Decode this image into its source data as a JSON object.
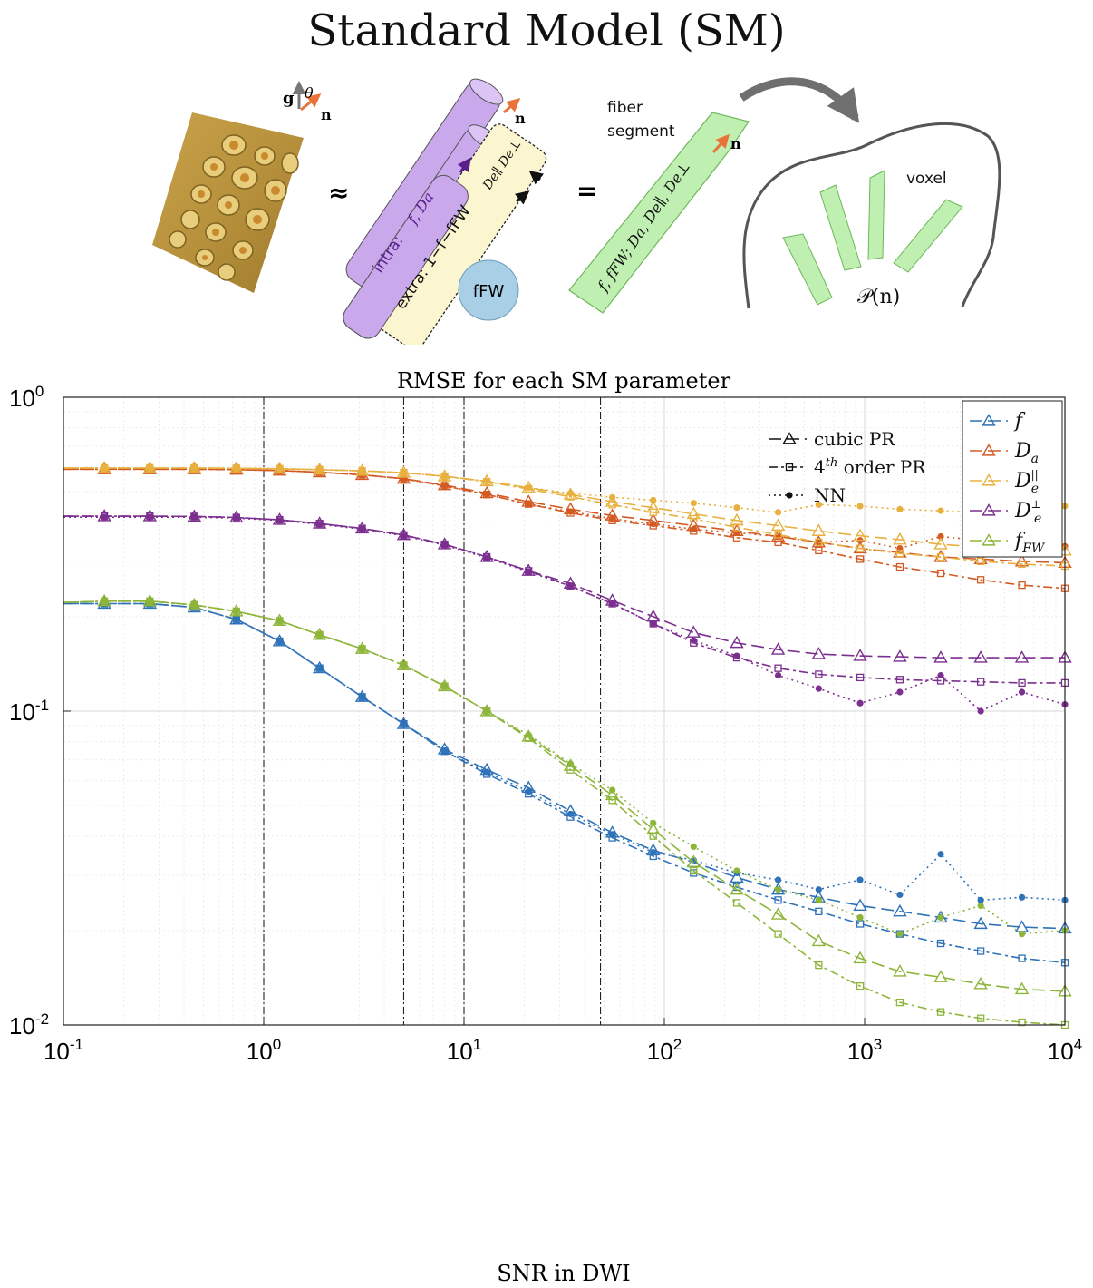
{
  "title": "Standard Model (SM)",
  "diagram": {
    "vector_g": "g",
    "vector_theta": "θ",
    "vector_n": "n",
    "approx_symbol": "≈",
    "equals_symbol": "=",
    "intra_label": "intra:",
    "intra_params": "f,    Da",
    "extra_label": "extra: 1−f−fFW",
    "extra_params": "De∥  De⊥",
    "fw_label": "fFW",
    "fiber_label_line1": "fiber",
    "fiber_label_line2": "segment",
    "fiber_params": "f, fFW; Da, De∥, De⊥",
    "voxel_label": "voxel",
    "odf_label": "𝒫(n)",
    "colors": {
      "cylinder": "#c9a8ec",
      "extra_box": "#fbf6cf",
      "fw_ball": "#a8cfe6",
      "fiber": "#bff0b2",
      "arrow": "#e8743a"
    }
  },
  "chart_data": {
    "type": "line",
    "title": "RMSE for each SM parameter",
    "xlabel": "SNR in DWI",
    "ylabel": "",
    "xscale": "log",
    "yscale": "log",
    "xlim": [
      0.1,
      10000
    ],
    "ylim": [
      0.01,
      1
    ],
    "xticks": [
      {
        "value": 0.1,
        "base": "10",
        "exp": "-1"
      },
      {
        "value": 1,
        "base": "10",
        "exp": "0"
      },
      {
        "value": 10,
        "base": "10",
        "exp": "1"
      },
      {
        "value": 100,
        "base": "10",
        "exp": "2"
      },
      {
        "value": 1000,
        "base": "10",
        "exp": "3"
      },
      {
        "value": 10000,
        "base": "10",
        "exp": "4"
      }
    ],
    "yticks": [
      {
        "value": 0.01,
        "base": "10",
        "exp": "-2"
      },
      {
        "value": 0.1,
        "base": "10",
        "exp": "-1"
      },
      {
        "value": 1,
        "base": "10",
        "exp": "0"
      }
    ],
    "vlines": [
      1,
      5,
      10,
      48
    ],
    "x": [
      0.1,
      0.16,
      0.27,
      0.45,
      0.73,
      1.2,
      1.9,
      3.1,
      5,
      8,
      13,
      21,
      34,
      55,
      88,
      140,
      230,
      370,
      590,
      950,
      1500,
      2400,
      3800,
      6100,
      10000
    ],
    "methods_legend": [
      {
        "label": "cubic PR",
        "style": "cubic",
        "marker": "triangle"
      },
      {
        "label": "4th order PR",
        "label_pre": "4",
        "label_sup": "th",
        "label_post": " order PR",
        "style": "fourth",
        "marker": "square"
      },
      {
        "label": "NN",
        "style": "nn",
        "marker": "dot"
      }
    ],
    "series": [
      {
        "name": "f",
        "symbol": "f",
        "color": "#2f72b8",
        "cubic": [
          0.22,
          0.22,
          0.22,
          0.214,
          0.196,
          0.167,
          0.137,
          0.111,
          0.091,
          0.0755,
          0.065,
          0.057,
          0.048,
          0.041,
          0.036,
          0.033,
          0.0295,
          0.027,
          0.0255,
          0.024,
          0.023,
          0.022,
          0.021,
          0.0205,
          0.0203
        ],
        "fourth": [
          0.22,
          0.22,
          0.22,
          0.214,
          0.196,
          0.167,
          0.137,
          0.111,
          0.091,
          0.0745,
          0.063,
          0.0545,
          0.046,
          0.0395,
          0.0345,
          0.0305,
          0.0275,
          0.025,
          0.023,
          0.021,
          0.0195,
          0.0182,
          0.0172,
          0.0163,
          0.0158
        ],
        "nn": [
          0.22,
          0.22,
          0.22,
          0.214,
          0.196,
          0.167,
          0.137,
          0.111,
          0.091,
          0.0745,
          0.064,
          0.0555,
          0.047,
          0.0405,
          0.0355,
          0.0335,
          0.0305,
          0.029,
          0.027,
          0.029,
          0.026,
          0.035,
          0.025,
          0.0255,
          0.025
        ]
      },
      {
        "name": "Da",
        "symbol": "D",
        "sub": "a",
        "color": "#d35a23",
        "cubic": [
          0.59,
          0.59,
          0.59,
          0.59,
          0.588,
          0.584,
          0.577,
          0.566,
          0.55,
          0.525,
          0.495,
          0.465,
          0.44,
          0.42,
          0.405,
          0.39,
          0.375,
          0.36,
          0.345,
          0.33,
          0.32,
          0.31,
          0.305,
          0.3,
          0.297
        ],
        "fourth": [
          0.59,
          0.59,
          0.59,
          0.59,
          0.588,
          0.584,
          0.577,
          0.566,
          0.55,
          0.522,
          0.49,
          0.457,
          0.428,
          0.405,
          0.39,
          0.375,
          0.357,
          0.345,
          0.325,
          0.305,
          0.288,
          0.275,
          0.262,
          0.252,
          0.246
        ],
        "nn": [
          0.59,
          0.59,
          0.59,
          0.59,
          0.588,
          0.584,
          0.577,
          0.566,
          0.55,
          0.522,
          0.49,
          0.457,
          0.432,
          0.41,
          0.395,
          0.38,
          0.37,
          0.36,
          0.345,
          0.35,
          0.33,
          0.36,
          0.35,
          0.36,
          0.335
        ]
      },
      {
        "name": "De_par",
        "symbol": "D",
        "sub": "e",
        "sup": "||",
        "color": "#e8b03e",
        "cubic": [
          0.595,
          0.595,
          0.595,
          0.595,
          0.594,
          0.592,
          0.588,
          0.583,
          0.575,
          0.56,
          0.54,
          0.515,
          0.49,
          0.465,
          0.445,
          0.425,
          0.405,
          0.39,
          0.375,
          0.362,
          0.352,
          0.34,
          0.333,
          0.329,
          0.325
        ],
        "fourth": [
          0.595,
          0.595,
          0.595,
          0.595,
          0.594,
          0.592,
          0.588,
          0.583,
          0.575,
          0.56,
          0.538,
          0.51,
          0.482,
          0.455,
          0.43,
          0.41,
          0.385,
          0.365,
          0.345,
          0.33,
          0.318,
          0.31,
          0.3,
          0.294,
          0.29
        ],
        "nn": [
          0.595,
          0.595,
          0.595,
          0.595,
          0.594,
          0.592,
          0.588,
          0.583,
          0.575,
          0.56,
          0.54,
          0.515,
          0.495,
          0.48,
          0.47,
          0.46,
          0.445,
          0.43,
          0.455,
          0.45,
          0.44,
          0.435,
          0.43,
          0.445,
          0.45
        ]
      },
      {
        "name": "De_perp",
        "symbol": "D",
        "sub": "e",
        "sup": "⊥",
        "color": "#7b2f8e",
        "cubic": [
          0.418,
          0.418,
          0.418,
          0.417,
          0.414,
          0.407,
          0.396,
          0.382,
          0.364,
          0.34,
          0.31,
          0.28,
          0.255,
          0.225,
          0.2,
          0.178,
          0.165,
          0.157,
          0.152,
          0.15,
          0.149,
          0.148,
          0.148,
          0.148,
          0.148
        ],
        "fourth": [
          0.418,
          0.418,
          0.418,
          0.417,
          0.414,
          0.407,
          0.396,
          0.382,
          0.364,
          0.34,
          0.31,
          0.28,
          0.25,
          0.22,
          0.19,
          0.165,
          0.148,
          0.137,
          0.131,
          0.128,
          0.126,
          0.125,
          0.124,
          0.123,
          0.123
        ],
        "nn": [
          0.415,
          0.415,
          0.415,
          0.415,
          0.412,
          0.405,
          0.394,
          0.38,
          0.362,
          0.338,
          0.308,
          0.278,
          0.25,
          0.22,
          0.19,
          0.168,
          0.15,
          0.13,
          0.118,
          0.106,
          0.115,
          0.13,
          0.1,
          0.115,
          0.105
        ]
      },
      {
        "name": "fFW",
        "symbol": "f",
        "sub": "FW",
        "color": "#8db53a",
        "cubic": [
          0.222,
          0.224,
          0.224,
          0.218,
          0.208,
          0.194,
          0.175,
          0.158,
          0.14,
          0.12,
          0.1,
          0.083,
          0.067,
          0.054,
          0.042,
          0.033,
          0.027,
          0.0225,
          0.0185,
          0.0163,
          0.0148,
          0.0142,
          0.0135,
          0.013,
          0.0128
        ],
        "fourth": [
          0.222,
          0.224,
          0.224,
          0.218,
          0.208,
          0.194,
          0.175,
          0.158,
          0.14,
          0.12,
          0.1,
          0.082,
          0.065,
          0.052,
          0.04,
          0.031,
          0.0245,
          0.0195,
          0.0155,
          0.0133,
          0.0118,
          0.011,
          0.0105,
          0.0102,
          0.01
        ],
        "nn": [
          0.222,
          0.224,
          0.224,
          0.218,
          0.208,
          0.194,
          0.175,
          0.158,
          0.14,
          0.12,
          0.1,
          0.084,
          0.068,
          0.056,
          0.044,
          0.037,
          0.031,
          0.027,
          0.025,
          0.022,
          0.0195,
          0.022,
          0.024,
          0.0195,
          0.02
        ]
      }
    ]
  }
}
